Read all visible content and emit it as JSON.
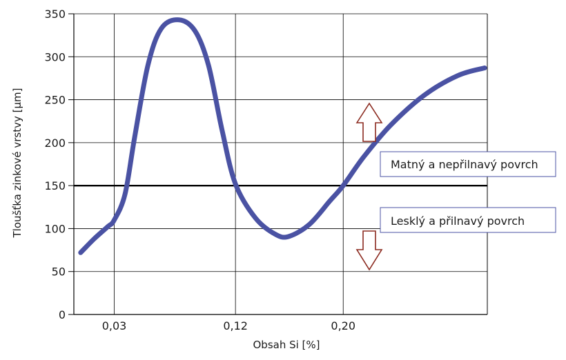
{
  "chart_data": {
    "type": "line",
    "title": "",
    "xlabel": "Obsah Si [%]",
    "ylabel": "Tloušťka zinkové vrstvy [µm]",
    "ylim": [
      0,
      350
    ],
    "yticks": [
      0,
      50,
      100,
      150,
      200,
      250,
      300,
      350
    ],
    "xtick_labels": [
      "0,03",
      "0,12",
      "0,20"
    ],
    "grid": true,
    "series": [
      {
        "color": "#4a52a3",
        "points": [
          {
            "x": 0.005,
            "y": 72
          },
          {
            "x": 0.015,
            "y": 88
          },
          {
            "x": 0.025,
            "y": 102
          },
          {
            "x": 0.03,
            "y": 110
          },
          {
            "x": 0.038,
            "y": 140
          },
          {
            "x": 0.045,
            "y": 205
          },
          {
            "x": 0.055,
            "y": 290
          },
          {
            "x": 0.065,
            "y": 333
          },
          {
            "x": 0.078,
            "y": 343
          },
          {
            "x": 0.09,
            "y": 330
          },
          {
            "x": 0.1,
            "y": 290
          },
          {
            "x": 0.11,
            "y": 215
          },
          {
            "x": 0.12,
            "y": 152
          },
          {
            "x": 0.135,
            "y": 112
          },
          {
            "x": 0.15,
            "y": 93
          },
          {
            "x": 0.16,
            "y": 91
          },
          {
            "x": 0.175,
            "y": 105
          },
          {
            "x": 0.19,
            "y": 132
          },
          {
            "x": 0.2,
            "y": 150
          },
          {
            "x": 0.215,
            "y": 183
          },
          {
            "x": 0.235,
            "y": 220
          },
          {
            "x": 0.26,
            "y": 255
          },
          {
            "x": 0.285,
            "y": 278
          },
          {
            "x": 0.305,
            "y": 287
          }
        ]
      }
    ],
    "threshold": {
      "y": 150,
      "color": "#000000"
    },
    "annotations": [
      {
        "text": "Matný a nepřilnavý povrch",
        "region": "above threshold"
      },
      {
        "text": "Lesklý a přilnavý povrch",
        "region": "below threshold"
      }
    ],
    "arrows": {
      "color": "#8b2a1f",
      "up": "above threshold",
      "down": "below threshold"
    },
    "colors": {
      "curve": "#4a52a3",
      "box_border": "#4a52a3",
      "grid": "#000000"
    }
  }
}
